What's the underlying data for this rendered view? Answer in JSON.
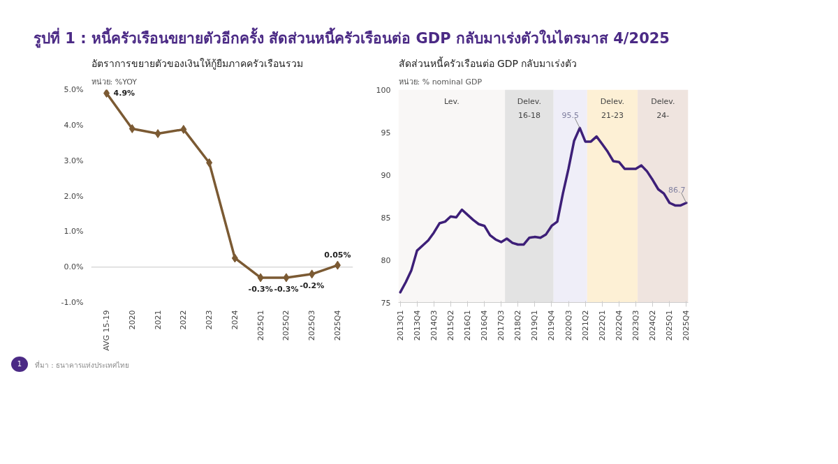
{
  "chart_data": [
    {
      "type": "line",
      "title": "อัตราการขยายตัวของเงินให้กู้ยืมภาคครัวเรือนรวม",
      "subtitle": "หน่วย: %YOY",
      "annotations": [
        "รูปที่ 1 : หนี้ครัวเรือนขยายตัวอีกครั้ง สัดส่วนหนี้ครัวเรือนต่อ GDP กลับมาเร่งตัวในไตรมาส 4/2025",
        "ที่มา : ธนาคารแห่งประเทศไทย",
        "1"
      ],
      "categories": [
        "AVG 15-19",
        "2020",
        "2021",
        "2022",
        "2023",
        "2024",
        "2025Q1",
        "2025Q2",
        "2025Q3",
        "2025Q4"
      ],
      "series": [
        {
          "color": "#7b5a33",
          "values": [
            4.9,
            3.9,
            3.76,
            3.88,
            2.94,
            0.25,
            -0.3,
            -0.3,
            -0.2,
            0.05
          ],
          "value_labels": [
            "4.9%",
            null,
            null,
            null,
            null,
            null,
            "-0.3%",
            "-0.3%",
            "-0.2%",
            "0.05%"
          ]
        }
      ],
      "ylim": [
        -1.0,
        5.0
      ],
      "yticks": [
        {
          "value": -1,
          "label": "-1.0%"
        },
        {
          "value": 0,
          "label": "0.0%"
        },
        {
          "value": 1,
          "label": "1.0%"
        },
        {
          "value": 2,
          "label": "2.0%"
        },
        {
          "value": 3,
          "label": "3.0%"
        },
        {
          "value": 4,
          "label": "4.0%"
        },
        {
          "value": 5,
          "label": "5.0%"
        }
      ],
      "ref_lines": [
        {
          "axis": "y",
          "value": 0,
          "color": "#d9d9d9"
        }
      ],
      "marker": "diamond",
      "grid": false
    },
    {
      "type": "line",
      "title": "สัดส่วนหนี้ครัวเรือนต่อ GDP กลับมาเร่งตัว",
      "subtitle": "หน่วย: % nominal GDP",
      "x": [
        "2013-01",
        "2013-04",
        "2013-07",
        "2013-10",
        "2014-01",
        "2014-04",
        "2014-07",
        "2014-10",
        "2015-01",
        "2015-04",
        "2015-07",
        "2015-10",
        "2016-01",
        "2016-04",
        "2016-07",
        "2016-10",
        "2017-01",
        "2017-04",
        "2017-07",
        "2017-10",
        "2018-01",
        "2018-04",
        "2018-07",
        "2018-10",
        "2019-01",
        "2019-04",
        "2019-07",
        "2019-10",
        "2020-01",
        "2020-04",
        "2020-07",
        "2020-10",
        "2021-01",
        "2021-04",
        "2021-07",
        "2021-10",
        "2022-01",
        "2022-04",
        "2022-07",
        "2022-10",
        "2023-01",
        "2023-04",
        "2023-07",
        "2023-10",
        "2024-01",
        "2024-04",
        "2024-07",
        "2024-10",
        "2025-01",
        "2025-04",
        "2025-07",
        "2025-10"
      ],
      "series": [
        {
          "color": "#3d1f78",
          "values": [
            76.2,
            77.4,
            78.8,
            81.1,
            81.7,
            82.3,
            83.2,
            84.3,
            84.5,
            85.1,
            85.0,
            85.9,
            85.3,
            84.7,
            84.2,
            84.0,
            82.9,
            82.4,
            82.1,
            82.5,
            82.0,
            81.8,
            81.8,
            82.6,
            82.7,
            82.6,
            83.0,
            84.0,
            84.5,
            87.8,
            90.7,
            94.0,
            95.5,
            93.9,
            93.9,
            94.5,
            93.6,
            92.7,
            91.6,
            91.5,
            90.7,
            90.7,
            90.7,
            91.1,
            90.4,
            89.4,
            88.3,
            87.8,
            86.7,
            86.4,
            86.4,
            86.7
          ]
        }
      ],
      "annotations": [
        {
          "text": "95.5",
          "x": "2021-01",
          "y": 95.5
        },
        {
          "text": "86.7",
          "x": "2025-10",
          "y": 86.7
        }
      ],
      "bands": [
        {
          "axis": "x",
          "from": "2012-12",
          "to": "2017-09",
          "label": "Lev.",
          "color": "#f9f7f6"
        },
        {
          "axis": "x",
          "from": "2017-09",
          "to": "2019-11",
          "label": "Delev.\n16-18",
          "color": "#e3e3e3"
        },
        {
          "axis": "x",
          "from": "2019-11",
          "to": "2021-05",
          "label": null,
          "color": "#efeef8"
        },
        {
          "axis": "x",
          "from": "2021-05",
          "to": "2023-08",
          "label": "Delev.\n21-23",
          "color": "#fdf0d5"
        },
        {
          "axis": "x",
          "from": "2023-08",
          "to": "2025-11",
          "label": "Delev.\n24-",
          "color": "#efe4df"
        }
      ],
      "xlim": [
        "2012-12",
        "2025-11"
      ],
      "xticks": [
        {
          "value": "2013-01",
          "label": "2013Q1"
        },
        {
          "value": "2013-10",
          "label": "2013Q4"
        },
        {
          "value": "2014-07",
          "label": "2014Q3"
        },
        {
          "value": "2015-04",
          "label": "2015Q2"
        },
        {
          "value": "2016-01",
          "label": "2016Q1"
        },
        {
          "value": "2016-10",
          "label": "2016Q4"
        },
        {
          "value": "2017-07",
          "label": "2017Q3"
        },
        {
          "value": "2018-04",
          "label": "2018Q2"
        },
        {
          "value": "2019-01",
          "label": "2019Q1"
        },
        {
          "value": "2019-10",
          "label": "2019Q4"
        },
        {
          "value": "2020-07",
          "label": "2020Q3"
        },
        {
          "value": "2021-04",
          "label": "2021Q2"
        },
        {
          "value": "2022-01",
          "label": "2022Q1"
        },
        {
          "value": "2022-10",
          "label": "2022Q4"
        },
        {
          "value": "2023-07",
          "label": "2023Q3"
        },
        {
          "value": "2024-04",
          "label": "2024Q2"
        },
        {
          "value": "2025-01",
          "label": "2025Q1"
        },
        {
          "value": "2025-10",
          "label": "2025Q4"
        }
      ],
      "ylim": [
        75,
        100
      ],
      "yticks": [
        75,
        80,
        85,
        90,
        95,
        100
      ],
      "marker": "none",
      "grid": false
    }
  ]
}
